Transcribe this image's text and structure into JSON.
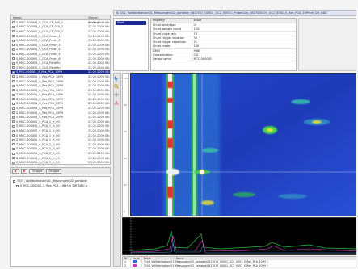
{
  "window": {
    "title": "Is T:01_Vollfabrikation\\01_Messungen\\02_portable_0817017_00001_GC2_00011_Probe\\Ces_0817030-01_GC2_0002_S_Res_PCA_10PH:el_DR_NDC"
  },
  "file_list": {
    "col_name": "Name",
    "col_date": "Datum erzeugt",
    "rows": [
      {
        "name": "S_MCC-000001_S_CCA_CF_005_1",
        "date": "23.02.2009 08:4"
      },
      {
        "name": "S_MCC-000001_S_CCA_CF_010_1",
        "date": "23.02.2009 08:4"
      },
      {
        "name": "S_MCC-000001_S_CCA_CF_020_1",
        "date": "23.02.2009 08:4"
      },
      {
        "name": "S_MCC-000001_S_CCA_Fresh_1",
        "date": "23.02.2009 08:4"
      },
      {
        "name": "S_MCC-000001_S_CCA_Fresh_2",
        "date": "23.02.2009 08:4"
      },
      {
        "name": "S_MCC-000001_S_CCA_Fresh_3",
        "date": "23.02.2009 08:4"
      },
      {
        "name": "S_MCC-000001_S_CCA_Fresh_4",
        "date": "23.02.2009 08:4"
      },
      {
        "name": "S_MCC-000001_S_CCA_Fresh_5",
        "date": "23.02.2009 08:4"
      },
      {
        "name": "S_MCC-000001_S_CCA_Fresh_6",
        "date": "23.02.2009 08:4"
      },
      {
        "name": "S_MCC-000001_S_CCA_Paraffin",
        "date": "23.02.2009 08:4"
      },
      {
        "name": "S_MCC-000001_S_CCA_Paraffin",
        "date": "23.02.2009 08:4"
      },
      {
        "name": "S_PCC-000001_S_Res_PCA_10PH",
        "date": "23.02.2009 08:4"
      },
      {
        "name": "S_MCC-000001_S_Res_PCA_10PH",
        "date": "23.02.2009 08:4"
      },
      {
        "name": "S_MCC-000001_S_Res_PCA_10PH",
        "date": "23.02.2009 08:4"
      },
      {
        "name": "S_MCC-000001_S_Res_PCA_10PH",
        "date": "23.02.2009 08:4"
      },
      {
        "name": "S_MCC-000001_S_Res_PCA_10PH",
        "date": "23.02.2009 08:4"
      },
      {
        "name": "S_MCC-000001_S_Res_PCA_10PH",
        "date": "23.02.2009 08:4"
      },
      {
        "name": "S_MCC-000001_S_Res_PCA_10PH",
        "date": "23.02.2009 08:4"
      },
      {
        "name": "S_MCC-000001_S_Res_PCA_20PH",
        "date": "23.02.2009 08:4"
      },
      {
        "name": "S_MCC-000001_S_Res_PCA_20PH",
        "date": "23.02.2009 08:4"
      },
      {
        "name": "S_MCC-000001_S_Res_PCA_20PH",
        "date": "23.02.2009 08:4"
      },
      {
        "name": "S_MCC-000001_S_Res_PCA_20PH",
        "date": "23.02.2009 08:4"
      },
      {
        "name": "S_MCC-000001_S_PCA_1_H_00",
        "date": "23.02.2009 08:4"
      },
      {
        "name": "S_MCC-000001_S_PCA_1_H_00",
        "date": "23.02.2009 08:4"
      },
      {
        "name": "S_MCC-000001_S_PCA_1_H_00",
        "date": "23.02.2009 08:4"
      },
      {
        "name": "S_MCC-000001_S_PCA_1_H_00",
        "date": "23.02.2009 08:4"
      },
      {
        "name": "S_MCC-000001_S_PCA_1_H_00",
        "date": "23.02.2009 08:4"
      },
      {
        "name": "S_MCC-000001_S_PCA_2_H_00",
        "date": "23.02.2009 08:4"
      },
      {
        "name": "S_MCC-000001_S_PCA_2_H_00",
        "date": "23.02.2009 08:4"
      },
      {
        "name": "S_MCC-000001_S_PCA_2_H_00",
        "date": "23.02.2009 08:4"
      },
      {
        "name": "S_MCC-000001_S_PCA_2_H_00",
        "date": "23.02.2009 08:4"
      },
      {
        "name": "S_MCC-000001_S_PCA_3_H_00",
        "date": "23.02.2009 08:4"
      }
    ],
    "selected_index": 11
  },
  "button_bar": {
    "delete_label": "X",
    "refresh_label": "R",
    "group_label": "Gruppe",
    "sort_label": "Gruppe"
  },
  "tree": {
    "root": "T:\\01_Vollfabrikation\\01_Messungen\\02_portable",
    "child": "S_PCC-000001_S_Res_PCA_10PH:el_DR_NDC-s"
  },
  "info_list": {
    "items": [
      "Start"
    ]
  },
  "properties": {
    "header_key": "Property",
    "header_value": "Value",
    "rows": [
      {
        "key": "Shunt start/type",
        "value": "0"
      },
      {
        "key": "Shunt sample count",
        "value": "1024"
      },
      {
        "key": "Shunt pulse rate",
        "value": "78"
      },
      {
        "key": "Shunt trigger duration",
        "value": "30"
      },
      {
        "key": "Shunt trigger repetition",
        "value": "21"
      },
      {
        "key": "Shunt mode",
        "value": "100"
      },
      {
        "key": "DMM",
        "value": "9660"
      },
      {
        "key": "Concentration",
        "value": "0.0"
      },
      {
        "key": "Sensor serial",
        "value": "MCC-000001"
      }
    ]
  },
  "toolbar": {
    "icons": [
      "cursor-icon",
      "zoom-icon",
      "crosshair-icon",
      "peak-icon"
    ]
  },
  "scale": {
    "ticks": [
      "100",
      "80",
      "60",
      "40",
      "20",
      "0"
    ]
  },
  "status": {
    "headers": [
      "Nr",
      "Farbe",
      "Datei",
      "Name"
    ],
    "rows": [
      {
        "nr": "1",
        "color": "#2f6fd8",
        "file": "T:\\01_Vollfabrikation\\01_Messungen\\02_portable\\0817017_00001_GC2_0001_S_Res_PCA_10PH"
      },
      {
        "nr": "2",
        "color": "#d02ad0",
        "file": "T:\\01_Vollfabrikation\\01_Messungen\\02_portable\\0817017_00001_GC2_0002_S_Res_PCA_10PH"
      }
    ]
  },
  "colors": {
    "heatmap_background": "#1f3bbd",
    "selection": "#1c2a8a",
    "trace_main": "#2fbf4a",
    "trace_alt": "#e040e0"
  }
}
